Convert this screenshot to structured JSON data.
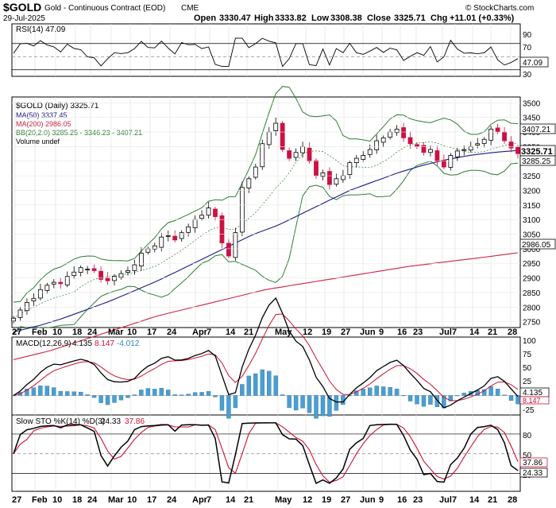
{
  "header": {
    "symbol": "$GOLD",
    "name": "Gold - Continuous Contract (EOD)",
    "exchange": "CME",
    "date": "29-Jul-2025",
    "open_label": "Open",
    "open": "3330.47",
    "high_label": "High",
    "high": "3333.82",
    "low_label": "Low",
    "low": "3308.38",
    "close_label": "Close",
    "close": "3325.71",
    "chg_label": "Chg",
    "chg": "+11.01 (+0.33%)",
    "watermark": "© StockCharts.com"
  },
  "rsi_panel": {
    "legend": "RSI(14) 47.09",
    "value_tag": "47.09",
    "ticks": [
      "90",
      "70",
      "50",
      "30"
    ]
  },
  "price_panel": {
    "legend": [
      {
        "text": "$GOLD (Daily) 3325.71",
        "color": "#000000"
      },
      {
        "text": "MA(50) 3337.45",
        "color": "#1a1a8c"
      },
      {
        "text": "MA(200) 2986.05",
        "color": "#cc2244"
      },
      {
        "text": "BB(20,2.0) 3285.25 - 3346.23 - 3407.21",
        "color": "#2e7d32"
      },
      {
        "text": "Volume undef",
        "color": "#000000"
      }
    ],
    "tags": {
      "bb_upper": "3407.21",
      "close": "3325.71",
      "bb_lower": "3285.25",
      "ma200": "2986.05"
    },
    "colors": {
      "up": "#000000",
      "down": "#cc1144",
      "ma50": "#1a1a8c",
      "ma200": "#cc2244",
      "bb": "#2e7d32",
      "bb_mid": "#2e7d32"
    }
  },
  "macd_panel": {
    "legend_prefix": "MACD(12,26,9)",
    "macd_value": "4.135",
    "signal_value": "8.147",
    "hist_value": "-4.012",
    "tags": {
      "macd": "4.135",
      "signal": "8.147"
    },
    "ticks": [
      "100",
      "75",
      "50",
      "25",
      "0",
      "-25"
    ]
  },
  "sto_panel": {
    "legend_prefix": "Slow STO %K(14) %D(3)",
    "k_value": "24.33",
    "d_value": "37.86",
    "tags": {
      "d": "37.86",
      "k": "24.33"
    },
    "ticks": [
      "80",
      "50",
      "20"
    ]
  },
  "x_labels": [
    "27",
    "Feb",
    "10",
    "18",
    "24",
    "Mar",
    "10",
    "17",
    "24",
    "Apr",
    "7",
    "14",
    "21",
    "May",
    "12",
    "19",
    "27",
    "Jun",
    "9",
    "16",
    "23",
    "Jul",
    "7",
    "14",
    "21",
    "28"
  ],
  "chart_data": {
    "type": "candlestick",
    "title": "$GOLD Gold - Continuous Contract (EOD) CME",
    "x_range": [
      "2025-01-27",
      "2025-07-29"
    ],
    "y_axis_price": {
      "ticks": [
        2750,
        2800,
        2850,
        2900,
        2950,
        3000,
        3050,
        3100,
        3150,
        3200,
        3250,
        3300,
        3350,
        3400,
        3450,
        3500
      ],
      "range": [
        2730,
        3520
      ]
    },
    "close_series_approx": [
      2762,
      2790,
      2816,
      2830,
      2860,
      2875,
      2885,
      2880,
      2905,
      2920,
      2935,
      2930,
      2925,
      2895,
      2890,
      2905,
      2915,
      2925,
      2945,
      2985,
      3000,
      3010,
      3040,
      3045,
      3030,
      3055,
      3075,
      3100,
      3115,
      3140,
      3110,
      3020,
      2975,
      3055,
      3210,
      3240,
      3280,
      3360,
      3400,
      3430,
      3340,
      3310,
      3330,
      3350,
      3300,
      3250,
      3260,
      3220,
      3240,
      3250,
      3295,
      3310,
      3320,
      3340,
      3370,
      3380,
      3400,
      3410,
      3380,
      3360,
      3350,
      3330,
      3340,
      3300,
      3280,
      3320,
      3335,
      3340,
      3350,
      3360,
      3375,
      3410,
      3400,
      3370,
      3345,
      3326
    ],
    "ma50_approx": [
      2715,
      2735,
      2760,
      2790,
      2820,
      2855,
      2890,
      2930,
      2970,
      3010,
      3050,
      3080,
      3120,
      3160,
      3200,
      3230,
      3260,
      3285,
      3305,
      3320,
      3330,
      3337
    ],
    "ma200_approx": [
      2620,
      2650,
      2690,
      2730,
      2770,
      2800,
      2830,
      2860,
      2880,
      2900,
      2920,
      2940,
      2955,
      2970,
      2986
    ],
    "series": [
      {
        "name": "MA(50)",
        "last": 3337.45
      },
      {
        "name": "MA(200)",
        "last": 2986.05
      },
      {
        "name": "BB(20,2.0)",
        "lower": 3285.25,
        "mid": 3346.23,
        "upper": 3407.21
      }
    ],
    "indicators": {
      "rsi14": {
        "last": 47.09,
        "ticks": [
          30,
          50,
          70,
          90
        ]
      },
      "macd": {
        "macd": 4.135,
        "signal": 8.147,
        "histogram": -4.012,
        "ticks": [
          -25,
          0,
          25,
          50,
          75,
          100
        ]
      },
      "slow_sto": {
        "k": 24.33,
        "d": 37.86,
        "ticks": [
          20,
          50,
          80
        ]
      }
    }
  }
}
